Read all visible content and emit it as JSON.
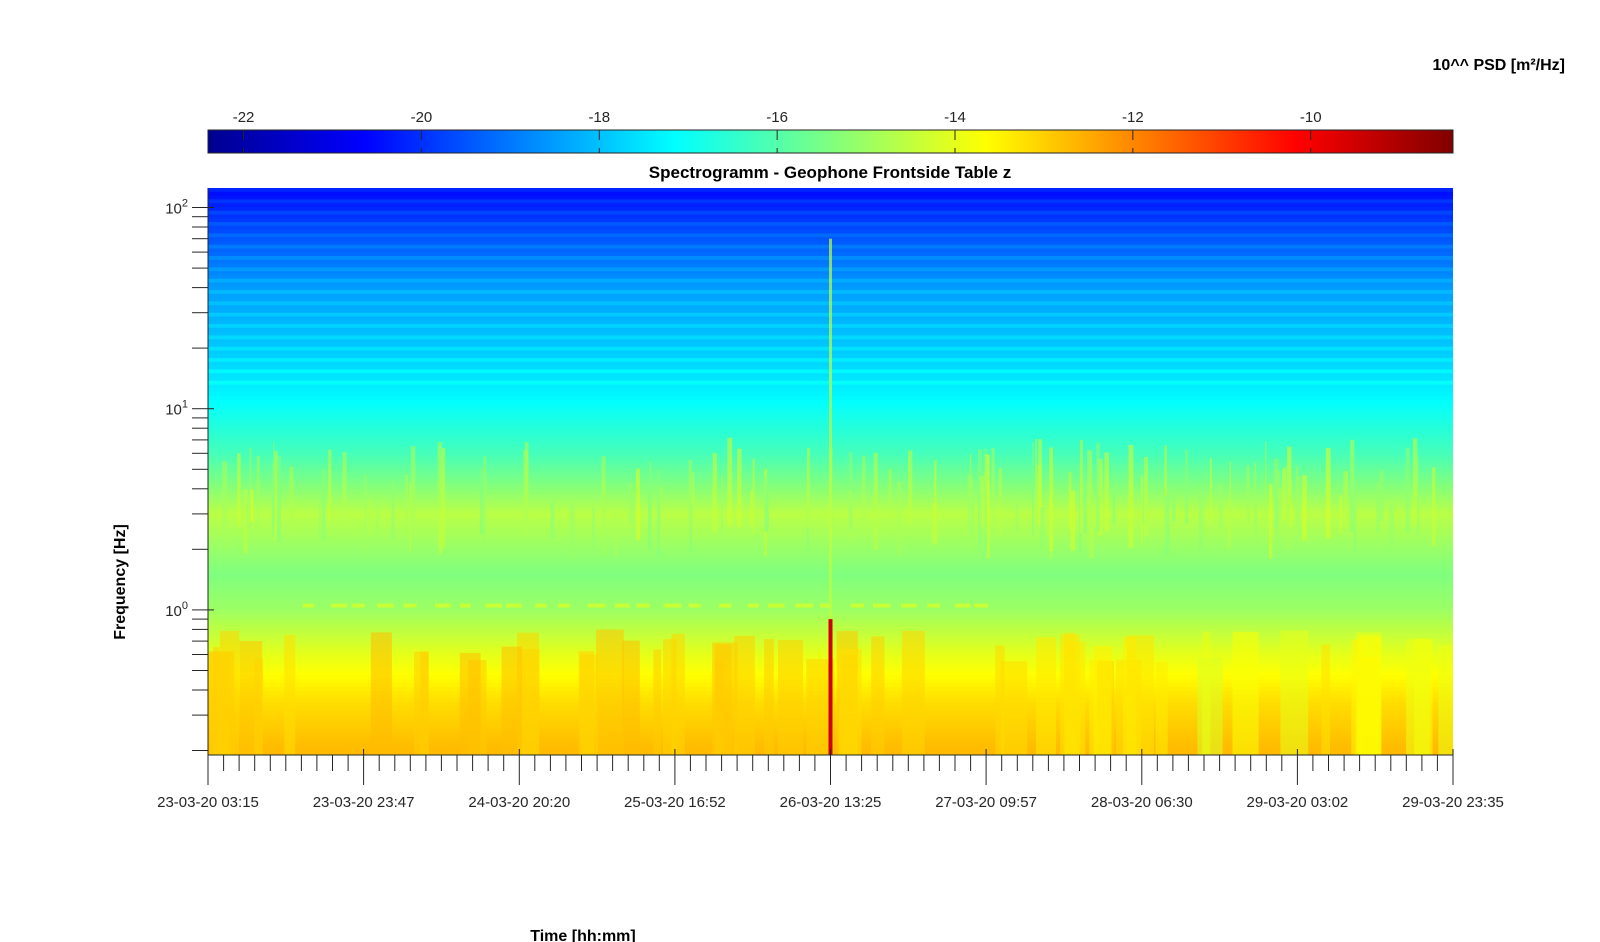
{
  "chart_data": {
    "type": "heatmap",
    "title": "Spectrogramm - Geophone Frontside Table z",
    "xlabel": "Time [hh:mm]",
    "ylabel": "Frequency [Hz]",
    "x_ticks": [
      "23-03-20 03:15",
      "23-03-20 23:47",
      "24-03-20 20:20",
      "25-03-20 16:52",
      "26-03-20 13:25",
      "27-03-20 09:57",
      "28-03-20 06:30",
      "29-03-20 03:02",
      "29-03-20 23:35"
    ],
    "y_scale": "log",
    "y_range": [
      0.19,
      125
    ],
    "y_ticks": [
      {
        "base": "10",
        "exp": "2",
        "value": 100
      },
      {
        "base": "10",
        "exp": "1",
        "value": 10
      },
      {
        "base": "10",
        "exp": "0",
        "value": 1
      }
    ],
    "colorbar": {
      "label": "10^^ PSD [m²/Hz]",
      "range": [
        -22.4,
        -8.4
      ],
      "ticks": [
        -22,
        -20,
        -18,
        -16,
        -14,
        -12,
        -10
      ],
      "colormap": "jet",
      "location": "top"
    },
    "spectral_profile": [
      {
        "freq": 120,
        "psd": -20.5
      },
      {
        "freq": 75,
        "psd": -19.6
      },
      {
        "freq": 40,
        "psd": -18.5
      },
      {
        "freq": 20,
        "psd": -17.9
      },
      {
        "freq": 12,
        "psd": -17.3
      },
      {
        "freq": 6,
        "psd": -16.2
      },
      {
        "freq": 3,
        "psd": -14.6
      },
      {
        "freq": 1.5,
        "psd": -15.4
      },
      {
        "freq": 1.0,
        "psd": -15.0
      },
      {
        "freq": 0.6,
        "psd": -14.0
      },
      {
        "freq": 0.35,
        "psd": -13.2
      },
      {
        "freq": 0.2,
        "psd": -12.7
      }
    ],
    "events": [
      {
        "time": "26-03-20 13:25",
        "type": "broadband spike",
        "psd": -9.5
      }
    ]
  }
}
